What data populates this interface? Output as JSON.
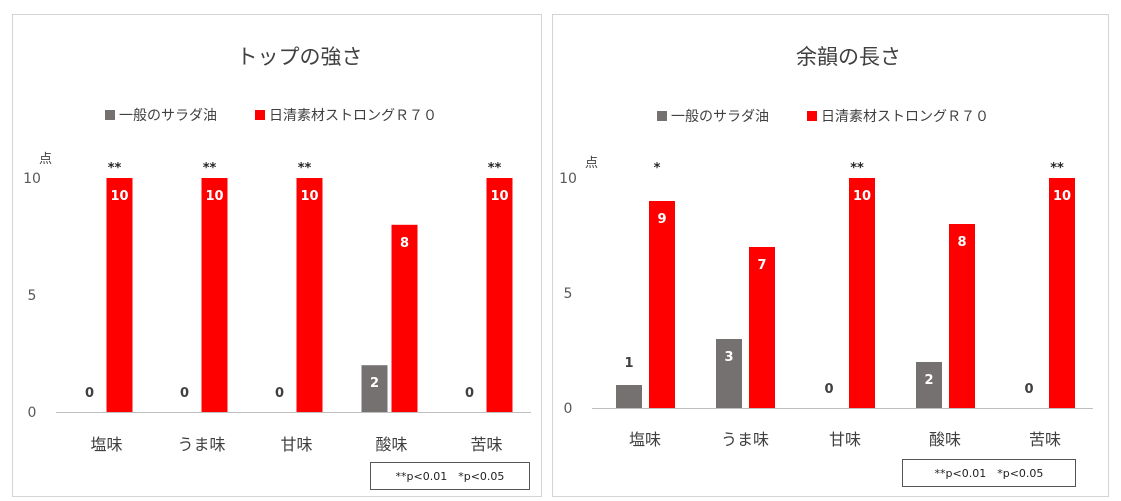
{
  "significance_note": "**p<0.01　*p<0.05",
  "chart_data": [
    {
      "type": "bar",
      "title": "トップの強さ",
      "ylabel": "点",
      "ylim": [
        0,
        10
      ],
      "yticks": [
        0,
        5,
        10
      ],
      "legend": "top",
      "categories": [
        "塩味",
        "うま味",
        "甘味",
        "酸味",
        "苦味"
      ],
      "series": [
        {
          "name": "一般のサラダ油",
          "color": "#767171",
          "values": [
            0,
            0,
            0,
            2,
            0
          ]
        },
        {
          "name": "日清素材ストロングＲ７０",
          "color": "#ff0000",
          "values": [
            10,
            10,
            10,
            8,
            10
          ]
        }
      ],
      "significance": [
        "**",
        "**",
        "**",
        "",
        "**"
      ]
    },
    {
      "type": "bar",
      "title": "余韻の長さ",
      "ylabel": "点",
      "ylim": [
        0,
        10
      ],
      "yticks": [
        0,
        5,
        10
      ],
      "legend": "top",
      "categories": [
        "塩味",
        "うま味",
        "甘味",
        "酸味",
        "苦味"
      ],
      "series": [
        {
          "name": "一般のサラダ油",
          "color": "#767171",
          "values": [
            1,
            3,
            0,
            2,
            0
          ]
        },
        {
          "name": "日清素材ストロングＲ７０",
          "color": "#ff0000",
          "values": [
            9,
            7,
            10,
            8,
            10
          ]
        }
      ],
      "significance": [
        "*",
        "",
        "**",
        "",
        "**"
      ]
    }
  ]
}
